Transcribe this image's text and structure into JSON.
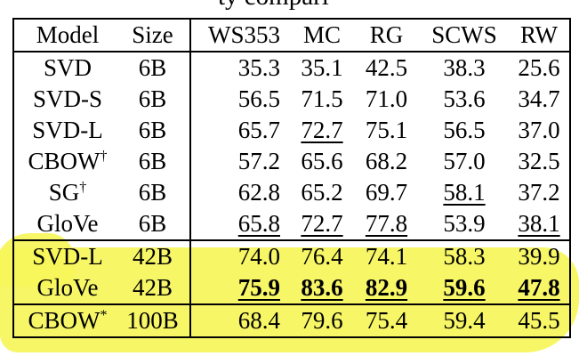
{
  "caption_fragment": "ty compari",
  "table": {
    "headers": [
      "Model",
      "Size",
      "WS353",
      "MC",
      "RG",
      "SCWS",
      "RW"
    ],
    "rows": [
      {
        "model": "SVD",
        "sup": "",
        "size": "6B",
        "ws353": "35.3",
        "mc": "35.1",
        "rg": "42.5",
        "scws": "38.3",
        "rw": "25.6"
      },
      {
        "model": "SVD-S",
        "sup": "",
        "size": "6B",
        "ws353": "56.5",
        "mc": "71.5",
        "rg": "71.0",
        "scws": "53.6",
        "rw": "34.7"
      },
      {
        "model": "SVD-L",
        "sup": "",
        "size": "6B",
        "ws353": "65.7",
        "mc": "72.7",
        "rg": "75.1",
        "scws": "56.5",
        "rw": "37.0"
      },
      {
        "model": "CBOW",
        "sup": "†",
        "size": "6B",
        "ws353": "57.2",
        "mc": "65.6",
        "rg": "68.2",
        "scws": "57.0",
        "rw": "32.5"
      },
      {
        "model": "SG",
        "sup": "†",
        "size": "6B",
        "ws353": "62.8",
        "mc": "65.2",
        "rg": "69.7",
        "scws": "58.1",
        "rw": "37.2"
      },
      {
        "model": "GloVe",
        "sup": "",
        "size": "6B",
        "ws353": "65.8",
        "mc": "72.7",
        "rg": "77.8",
        "scws": "53.9",
        "rw": "38.1"
      },
      {
        "model": "SVD-L",
        "sup": "",
        "size": "42B",
        "ws353": "74.0",
        "mc": "76.4",
        "rg": "74.1",
        "scws": "58.3",
        "rw": "39.9"
      },
      {
        "model": "GloVe",
        "sup": "",
        "size": "42B",
        "ws353": "75.9",
        "mc": "83.6",
        "rg": "82.9",
        "scws": "59.6",
        "rw": "47.8"
      },
      {
        "model": "CBOW",
        "sup": "*",
        "size": "100B",
        "ws353": "68.4",
        "mc": "79.6",
        "rg": "75.4",
        "scws": "59.4",
        "rw": "45.5"
      }
    ]
  },
  "colors": {
    "highlight": "#f6f55a"
  }
}
